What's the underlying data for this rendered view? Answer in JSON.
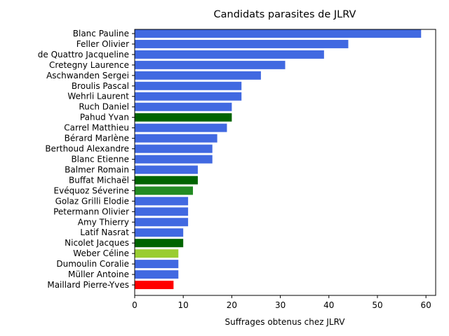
{
  "chart_data": {
    "type": "bar",
    "orientation": "horizontal",
    "title": "Candidats parasites de JLRV",
    "xlabel": "Suffrages obtenus chez JLRV",
    "ylabel": "",
    "xlim": [
      0,
      62
    ],
    "xticks": [
      0,
      10,
      20,
      30,
      40,
      50,
      60
    ],
    "grid": false,
    "categories": [
      "Blanc Pauline",
      "Feller Olivier",
      "de Quattro Jacqueline",
      "Cretegny Laurence",
      "Aschwanden Sergei",
      "Broulis Pascal",
      "Wehrli Laurent",
      "Ruch Daniel",
      "Pahud Yvan",
      "Carrel Matthieu",
      "Bérard Marlène",
      "Berthoud Alexandre",
      "Blanc Etienne",
      "Balmer Romain",
      "Buffat Michaël",
      "Evéquoz Séverine",
      "Golaz Grilli Elodie",
      "Petermann Olivier",
      "Amy Thierry",
      "Latif Nasrat",
      "Nicolet Jacques",
      "Weber Céline",
      "Dumoulin Coralie",
      "Müller Antoine",
      "Maillard Pierre-Yves"
    ],
    "values": [
      59,
      44,
      39,
      31,
      26,
      22,
      22,
      20,
      20,
      19,
      17,
      16,
      16,
      13,
      13,
      12,
      11,
      11,
      11,
      10,
      10,
      9,
      9,
      9,
      8
    ],
    "colors": [
      "#4169e1",
      "#4169e1",
      "#4169e1",
      "#4169e1",
      "#4169e1",
      "#4169e1",
      "#4169e1",
      "#4169e1",
      "#006400",
      "#4169e1",
      "#4169e1",
      "#4169e1",
      "#4169e1",
      "#4169e1",
      "#006400",
      "#228b22",
      "#4169e1",
      "#4169e1",
      "#4169e1",
      "#4169e1",
      "#006400",
      "#9acd32",
      "#4169e1",
      "#4169e1",
      "#ff0000"
    ]
  }
}
